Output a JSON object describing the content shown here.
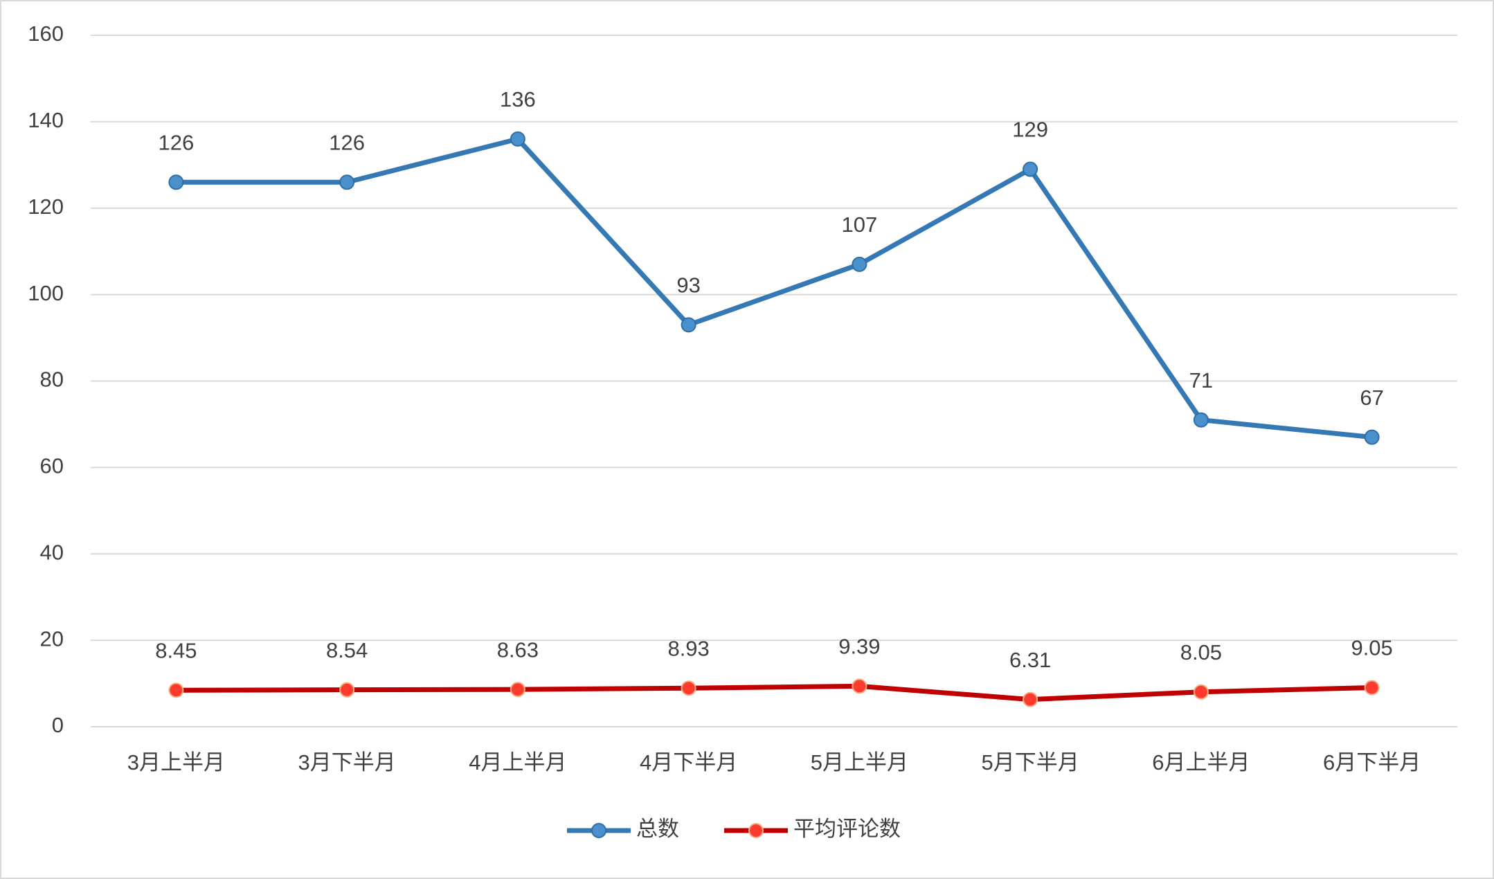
{
  "chart_data": {
    "type": "line",
    "categories": [
      "3月上半月",
      "3月下半月",
      "4月上半月",
      "4月下半月",
      "5月上半月",
      "5月下半月",
      "6月上半月",
      "6月下半月"
    ],
    "series": [
      {
        "name": "总数",
        "color": "#3478b4",
        "values": [
          126,
          126,
          136,
          93,
          107,
          129,
          71,
          67
        ]
      },
      {
        "name": "平均评论数",
        "color": "#c00000",
        "values": [
          8.45,
          8.54,
          8.63,
          8.93,
          9.39,
          6.31,
          8.05,
          9.05
        ]
      }
    ],
    "ylim": [
      0,
      160
    ],
    "yticks": [
      0,
      20,
      40,
      60,
      80,
      100,
      120,
      140,
      160
    ],
    "grid": true,
    "legend": "bottom"
  }
}
